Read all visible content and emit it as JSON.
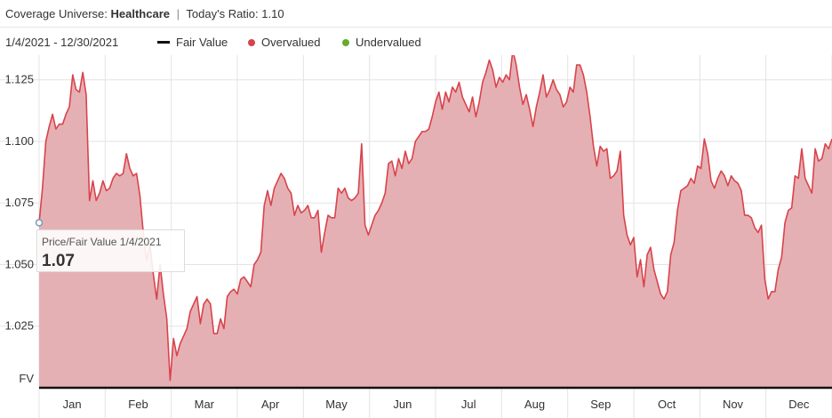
{
  "header": {
    "universe_label": "Coverage Universe:",
    "universe_value": "Healthcare",
    "separator": "|",
    "ratio_label": "Today's Ratio:",
    "ratio_value": "1.10"
  },
  "legend": {
    "date_range": "1/4/2021 - 12/30/2021",
    "items": [
      {
        "label": "Fair Value",
        "color": "#111111"
      },
      {
        "label": "Overvalued",
        "color": "#d9434b"
      },
      {
        "label": "Undervalued",
        "color": "#6aaa2a"
      }
    ]
  },
  "tooltip": {
    "title": "Price/Fair Value 1/4/2021",
    "value": "1.07"
  },
  "colors": {
    "area_fill": "#e5b0b4",
    "line": "#d9434b",
    "grid": "#e3e3e3",
    "baseline": "#111111"
  },
  "chart_data": {
    "type": "area",
    "title": "",
    "xlabel": "",
    "ylabel": "",
    "ylim": [
      1.0,
      1.135
    ],
    "y_ticks": [
      1.025,
      1.05,
      1.075,
      1.1,
      1.125
    ],
    "y_tick_labels": [
      "1.025",
      "1.050",
      "1.075",
      "1.100",
      "1.125"
    ],
    "baseline_label": "FV",
    "baseline_value": 1.0,
    "x_ticks": [
      "Jan",
      "Feb",
      "Mar",
      "Apr",
      "May",
      "Jun",
      "Jul",
      "Aug",
      "Sep",
      "Oct",
      "Nov",
      "Dec"
    ],
    "grid": true,
    "series": [
      {
        "values": [
          1.067,
          1.081,
          1.1,
          1.106,
          1.111,
          1.105,
          1.107,
          1.107,
          1.111,
          1.114,
          1.127,
          1.121,
          1.12,
          1.128,
          1.119,
          1.076,
          1.084,
          1.076,
          1.079,
          1.084,
          1.08,
          1.081,
          1.085,
          1.087,
          1.086,
          1.087,
          1.095,
          1.089,
          1.086,
          1.087,
          1.078,
          1.063,
          1.052,
          1.058,
          1.046,
          1.036,
          1.05,
          1.038,
          1.028,
          1.003,
          1.02,
          1.013,
          1.018,
          1.021,
          1.024,
          1.031,
          1.034,
          1.037,
          1.026,
          1.034,
          1.036,
          1.034,
          1.022,
          1.022,
          1.028,
          1.024,
          1.037,
          1.039,
          1.04,
          1.038,
          1.044,
          1.045,
          1.043,
          1.041,
          1.05,
          1.052,
          1.055,
          1.074,
          1.08,
          1.074,
          1.081,
          1.084,
          1.087,
          1.085,
          1.081,
          1.079,
          1.07,
          1.074,
          1.071,
          1.072,
          1.074,
          1.069,
          1.069,
          1.072,
          1.055,
          1.063,
          1.07,
          1.069,
          1.069,
          1.081,
          1.079,
          1.081,
          1.077,
          1.076,
          1.077,
          1.079,
          1.099,
          1.066,
          1.062,
          1.066,
          1.07,
          1.072,
          1.075,
          1.079,
          1.091,
          1.092,
          1.086,
          1.093,
          1.089,
          1.096,
          1.091,
          1.093,
          1.1,
          1.102,
          1.104,
          1.104,
          1.105,
          1.11,
          1.116,
          1.12,
          1.113,
          1.12,
          1.116,
          1.122,
          1.12,
          1.124,
          1.118,
          1.115,
          1.112,
          1.118,
          1.11,
          1.116,
          1.124,
          1.128,
          1.133,
          1.129,
          1.122,
          1.126,
          1.124,
          1.127,
          1.125,
          1.137,
          1.131,
          1.122,
          1.115,
          1.119,
          1.113,
          1.106,
          1.114,
          1.12,
          1.127,
          1.118,
          1.121,
          1.125,
          1.121,
          1.119,
          1.114,
          1.116,
          1.122,
          1.12,
          1.131,
          1.131,
          1.127,
          1.12,
          1.11,
          1.098,
          1.09,
          1.098,
          1.096,
          1.097,
          1.085,
          1.086,
          1.088,
          1.096,
          1.07,
          1.062,
          1.058,
          1.061,
          1.045,
          1.052,
          1.041,
          1.054,
          1.057,
          1.048,
          1.043,
          1.038,
          1.036,
          1.039,
          1.054,
          1.059,
          1.072,
          1.08,
          1.081,
          1.082,
          1.085,
          1.083,
          1.09,
          1.089,
          1.101,
          1.095,
          1.084,
          1.081,
          1.085,
          1.088,
          1.086,
          1.082,
          1.086,
          1.084,
          1.083,
          1.08,
          1.07,
          1.07,
          1.069,
          1.065,
          1.063,
          1.066,
          1.044,
          1.036,
          1.039,
          1.039,
          1.048,
          1.053,
          1.067,
          1.072,
          1.073,
          1.086,
          1.085,
          1.097,
          1.085,
          1.082,
          1.079,
          1.097,
          1.092,
          1.093,
          1.099,
          1.097,
          1.101
        ]
      }
    ]
  }
}
